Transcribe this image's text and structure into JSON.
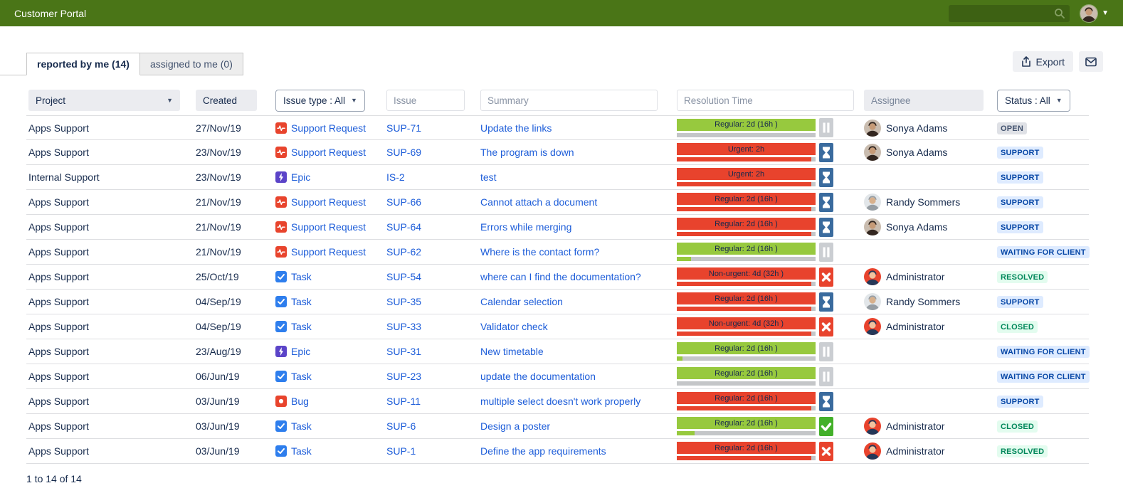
{
  "header": {
    "title": "Customer Portal",
    "search_value": ""
  },
  "tabs": {
    "reported": {
      "label": "reported by me (14)"
    },
    "assigned": {
      "label": "assigned to me (0)"
    }
  },
  "toolbar": {
    "export_label": "Export"
  },
  "filters": {
    "project_label": "Project",
    "created_label": "Created",
    "issue_type_label": "Issue type : All",
    "issue_placeholder": "Issue",
    "summary_placeholder": "Summary",
    "resolution_placeholder": "Resolution Time",
    "assignee_placeholder": "Assignee",
    "status_label": "Status : All"
  },
  "colors": {
    "topbar_bg": "#4A7517",
    "link_blue": "#1D5DD9",
    "bar": {
      "green": "#97C93E",
      "red": "#E8432D",
      "track": "#C4C6C8"
    },
    "badge_variants": {
      "gray": {
        "bg": "#DFE1E6",
        "fg": "#42526E"
      },
      "blue": {
        "bg": "#DEEBFF",
        "fg": "#0747A6"
      },
      "green": {
        "bg": "#E3FCEF",
        "fg": "#00875A"
      }
    }
  },
  "avatars": {
    "sonya": {
      "bg": "#C9BCAF",
      "hair": "#33261F",
      "face": "#C69A76"
    },
    "randy": {
      "bg": "#E2E6E9",
      "hair": "#969DA3",
      "face": "#D7B08C"
    },
    "admin": {
      "bg": "#E8432D",
      "hair": "#253858",
      "face": "#F0C3A0"
    }
  },
  "rows": [
    {
      "project": "Apps Support",
      "created": "27/Nov/19",
      "type": "Support Request",
      "type_icon": "support-request-icon",
      "issue": "SUP-71",
      "summary": "Update the links",
      "resolution": {
        "label": "Regular: 2d (16h )",
        "bar_color": "green",
        "progress_pct": 0,
        "progress_color": "green",
        "icon": "pause-icon"
      },
      "assignee": "Sonya Adams",
      "avatar": "sonya",
      "status": "OPEN",
      "status_variant": "gray"
    },
    {
      "project": "Apps Support",
      "created": "23/Nov/19",
      "type": "Support Request",
      "type_icon": "support-request-icon",
      "issue": "SUP-69",
      "summary": "The program is down",
      "resolution": {
        "label": "Urgent: 2h",
        "bar_color": "red",
        "progress_pct": 97,
        "progress_color": "red",
        "icon": "hourglass-icon"
      },
      "assignee": "Sonya Adams",
      "avatar": "sonya",
      "status": "SUPPORT",
      "status_variant": "blue"
    },
    {
      "project": "Internal Support",
      "created": "23/Nov/19",
      "type": "Epic",
      "type_icon": "epic-icon",
      "issue": "IS-2",
      "summary": "test",
      "resolution": {
        "label": "Urgent: 2h",
        "bar_color": "red",
        "progress_pct": 97,
        "progress_color": "red",
        "icon": "hourglass-icon"
      },
      "assignee": null,
      "avatar": null,
      "status": "SUPPORT",
      "status_variant": "blue"
    },
    {
      "project": "Apps Support",
      "created": "21/Nov/19",
      "type": "Support Request",
      "type_icon": "support-request-icon",
      "issue": "SUP-66",
      "summary": "Cannot attach a document",
      "resolution": {
        "label": "Regular: 2d (16h )",
        "bar_color": "red",
        "progress_pct": 97,
        "progress_color": "red",
        "icon": "hourglass-icon"
      },
      "assignee": "Randy Sommers",
      "avatar": "randy",
      "status": "SUPPORT",
      "status_variant": "blue"
    },
    {
      "project": "Apps Support",
      "created": "21/Nov/19",
      "type": "Support Request",
      "type_icon": "support-request-icon",
      "issue": "SUP-64",
      "summary": "Errors while merging",
      "resolution": {
        "label": "Regular: 2d (16h )",
        "bar_color": "red",
        "progress_pct": 97,
        "progress_color": "red",
        "icon": "hourglass-icon"
      },
      "assignee": "Sonya Adams",
      "avatar": "sonya",
      "status": "SUPPORT",
      "status_variant": "blue"
    },
    {
      "project": "Apps Support",
      "created": "21/Nov/19",
      "type": "Support Request",
      "type_icon": "support-request-icon",
      "issue": "SUP-62",
      "summary": "Where is the contact form?",
      "resolution": {
        "label": "Regular: 2d (16h )",
        "bar_color": "green",
        "progress_pct": 10,
        "progress_color": "green",
        "icon": "pause-icon"
      },
      "assignee": null,
      "avatar": null,
      "status": "WAITING FOR CLIENT",
      "status_variant": "blue"
    },
    {
      "project": "Apps Support",
      "created": "25/Oct/19",
      "type": "Task",
      "type_icon": "task-icon",
      "issue": "SUP-54",
      "summary": "where can I find the documentation?",
      "resolution": {
        "label": "Non-urgent: 4d (32h )",
        "bar_color": "red",
        "progress_pct": 97,
        "progress_color": "red",
        "icon": "close-icon"
      },
      "assignee": "Administrator",
      "avatar": "admin",
      "status": "RESOLVED",
      "status_variant": "green"
    },
    {
      "project": "Apps Support",
      "created": "04/Sep/19",
      "type": "Task",
      "type_icon": "task-icon",
      "issue": "SUP-35",
      "summary": "Calendar selection",
      "resolution": {
        "label": "Regular: 2d (16h )",
        "bar_color": "red",
        "progress_pct": 97,
        "progress_color": "red",
        "icon": "hourglass-icon"
      },
      "assignee": "Randy Sommers",
      "avatar": "randy",
      "status": "SUPPORT",
      "status_variant": "blue"
    },
    {
      "project": "Apps Support",
      "created": "04/Sep/19",
      "type": "Task",
      "type_icon": "task-icon",
      "issue": "SUP-33",
      "summary": "Validator check",
      "resolution": {
        "label": "Non-urgent: 4d (32h )",
        "bar_color": "red",
        "progress_pct": 97,
        "progress_color": "red",
        "icon": "close-icon"
      },
      "assignee": "Administrator",
      "avatar": "admin",
      "status": "CLOSED",
      "status_variant": "green"
    },
    {
      "project": "Apps Support",
      "created": "23/Aug/19",
      "type": "Epic",
      "type_icon": "epic-icon",
      "issue": "SUP-31",
      "summary": "New timetable",
      "resolution": {
        "label": "Regular: 2d (16h )",
        "bar_color": "green",
        "progress_pct": 4,
        "progress_color": "green",
        "icon": "pause-icon"
      },
      "assignee": null,
      "avatar": null,
      "status": "WAITING FOR CLIENT",
      "status_variant": "blue"
    },
    {
      "project": "Apps Support",
      "created": "06/Jun/19",
      "type": "Task",
      "type_icon": "task-icon",
      "issue": "SUP-23",
      "summary": "update the documentation",
      "resolution": {
        "label": "Regular: 2d (16h )",
        "bar_color": "green",
        "progress_pct": 0,
        "progress_color": "green",
        "icon": "pause-icon"
      },
      "assignee": null,
      "avatar": null,
      "status": "WAITING FOR CLIENT",
      "status_variant": "blue"
    },
    {
      "project": "Apps Support",
      "created": "03/Jun/19",
      "type": "Bug",
      "type_icon": "bug-icon",
      "issue": "SUP-11",
      "summary": "multiple select doesn't work properly",
      "resolution": {
        "label": "Regular: 2d (16h )",
        "bar_color": "red",
        "progress_pct": 97,
        "progress_color": "red",
        "icon": "hourglass-icon"
      },
      "assignee": null,
      "avatar": null,
      "status": "SUPPORT",
      "status_variant": "blue"
    },
    {
      "project": "Apps Support",
      "created": "03/Jun/19",
      "type": "Task",
      "type_icon": "task-icon",
      "issue": "SUP-6",
      "summary": "Design a poster",
      "resolution": {
        "label": "Regular: 2d (16h )",
        "bar_color": "green",
        "progress_pct": 13,
        "progress_color": "green",
        "icon": "check-icon"
      },
      "assignee": "Administrator",
      "avatar": "admin",
      "status": "CLOSED",
      "status_variant": "green"
    },
    {
      "project": "Apps Support",
      "created": "03/Jun/19",
      "type": "Task",
      "type_icon": "task-icon",
      "issue": "SUP-1",
      "summary": "Define the app requirements",
      "resolution": {
        "label": "Regular: 2d (16h )",
        "bar_color": "red",
        "progress_pct": 97,
        "progress_color": "red",
        "icon": "close-icon"
      },
      "assignee": "Administrator",
      "avatar": "admin",
      "status": "RESOLVED",
      "status_variant": "green"
    }
  ],
  "footer": {
    "count_label": "1 to 14 of 14"
  }
}
